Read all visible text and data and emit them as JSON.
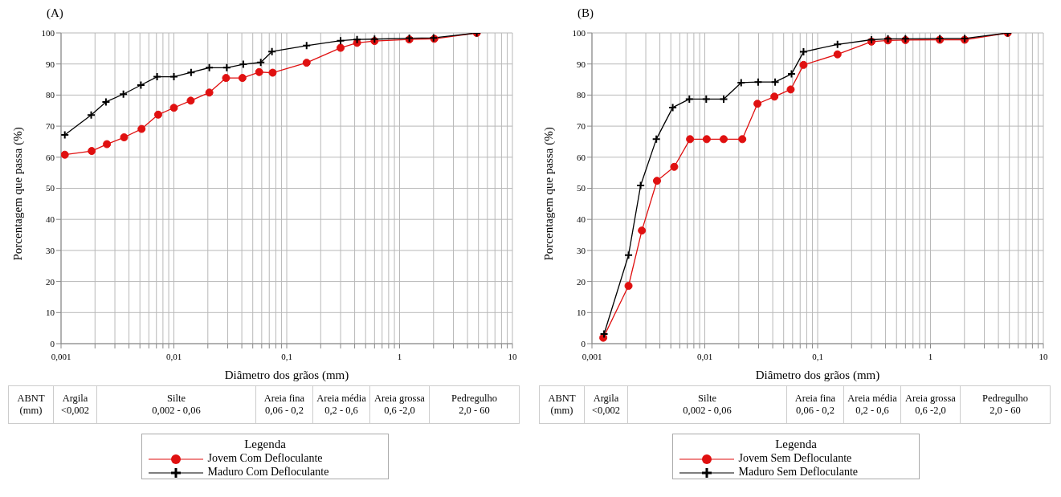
{
  "chart_data": [
    {
      "type": "line",
      "title": "(A)",
      "xlabel": "Diâmetro dos grãos (mm)",
      "ylabel": "Porcentagem que passa (%)",
      "log": "x",
      "grid": true,
      "legend": "bottom",
      "legend_title": "Legenda",
      "line_style": "solid",
      "xlim": [
        0.001,
        10
      ],
      "ylim": [
        0,
        100
      ],
      "xticks": [
        {
          "value": 0.001,
          "label": "0,001"
        },
        {
          "value": 0.002,
          "label": null
        },
        {
          "value": 0.003,
          "label": null
        },
        {
          "value": 0.004,
          "label": null
        },
        {
          "value": 0.005,
          "label": null
        },
        {
          "value": 0.006,
          "label": null
        },
        {
          "value": 0.007,
          "label": null
        },
        {
          "value": 0.008,
          "label": null
        },
        {
          "value": 0.009,
          "label": null
        },
        {
          "value": 0.01,
          "label": "0,01"
        },
        {
          "value": 0.02,
          "label": null
        },
        {
          "value": 0.03,
          "label": null
        },
        {
          "value": 0.04,
          "label": null
        },
        {
          "value": 0.05,
          "label": null
        },
        {
          "value": 0.06,
          "label": null
        },
        {
          "value": 0.07,
          "label": null
        },
        {
          "value": 0.08,
          "label": null
        },
        {
          "value": 0.09,
          "label": null
        },
        {
          "value": 0.1,
          "label": "0,1"
        },
        {
          "value": 0.2,
          "label": null
        },
        {
          "value": 0.3,
          "label": null
        },
        {
          "value": 0.4,
          "label": null
        },
        {
          "value": 0.5,
          "label": null
        },
        {
          "value": 0.6,
          "label": null
        },
        {
          "value": 0.7,
          "label": null
        },
        {
          "value": 0.8,
          "label": null
        },
        {
          "value": 0.9,
          "label": null
        },
        {
          "value": 1,
          "label": "1"
        },
        {
          "value": 2,
          "label": null
        },
        {
          "value": 3,
          "label": null
        },
        {
          "value": 4,
          "label": null
        },
        {
          "value": 5,
          "label": null
        },
        {
          "value": 6,
          "label": null
        },
        {
          "value": 7,
          "label": null
        },
        {
          "value": 8,
          "label": null
        },
        {
          "value": 9,
          "label": null
        },
        {
          "value": 10,
          "label": "10"
        }
      ],
      "yticks": [
        0,
        10,
        20,
        30,
        40,
        50,
        60,
        70,
        80,
        90,
        100
      ],
      "series": [
        {
          "name": "Jovem Com Defloculante",
          "color": "#e01010",
          "marker": "circle",
          "x": [
            0.00108,
            0.00187,
            0.00255,
            0.00362,
            0.00517,
            0.00726,
            0.01,
            0.0141,
            0.0206,
            0.029,
            0.0405,
            0.057,
            0.075,
            0.15,
            0.3,
            0.42,
            0.6,
            1.22,
            2.03,
            4.83
          ],
          "values": [
            60.8,
            62.0,
            64.2,
            66.4,
            69.1,
            73.7,
            75.9,
            78.2,
            80.8,
            85.5,
            85.5,
            87.4,
            87.2,
            90.4,
            95.2,
            96.8,
            97.4,
            97.9,
            98.1,
            100
          ]
        },
        {
          "name": "Maduro Com Defloculante",
          "color": "#000000",
          "marker": "cross",
          "x": [
            0.00108,
            0.00185,
            0.0025,
            0.00357,
            0.0051,
            0.0071,
            0.01,
            0.0142,
            0.0206,
            0.0294,
            0.0412,
            0.0589,
            0.074,
            0.15,
            0.3,
            0.42,
            0.6,
            1.22,
            2.0,
            4.83
          ],
          "values": [
            67.2,
            73.6,
            77.8,
            80.3,
            83.2,
            85.9,
            85.9,
            87.3,
            88.8,
            88.8,
            89.9,
            90.5,
            94.0,
            95.9,
            97.5,
            97.9,
            98.0,
            98.3,
            98.4,
            100
          ]
        }
      ],
      "annotations": [
        "ABNT\n(mm)",
        "Argila\n<0,002",
        "Silte\n0,002 - 0,06",
        "Areia fina\n0,06 - 0,2",
        "Areia média\n0,2 - 0,6",
        "Areia grossa\n0,6 -2,0",
        "Pedregulho\n2,0 - 60"
      ]
    },
    {
      "type": "line",
      "title": "(B)",
      "xlabel": "Diâmetro dos grãos (mm)",
      "ylabel": "Porcentagem que passa (%)",
      "log": "x",
      "grid": true,
      "legend": "bottom",
      "legend_title": "Legenda",
      "line_style": "solid",
      "xlim": [
        0.001,
        10
      ],
      "ylim": [
        0,
        100
      ],
      "xticks": [
        {
          "value": 0.001,
          "label": "0,001"
        },
        {
          "value": 0.002,
          "label": null
        },
        {
          "value": 0.003,
          "label": null
        },
        {
          "value": 0.004,
          "label": null
        },
        {
          "value": 0.005,
          "label": null
        },
        {
          "value": 0.006,
          "label": null
        },
        {
          "value": 0.007,
          "label": null
        },
        {
          "value": 0.008,
          "label": null
        },
        {
          "value": 0.009,
          "label": null
        },
        {
          "value": 0.01,
          "label": "0,01"
        },
        {
          "value": 0.02,
          "label": null
        },
        {
          "value": 0.03,
          "label": null
        },
        {
          "value": 0.04,
          "label": null
        },
        {
          "value": 0.05,
          "label": null
        },
        {
          "value": 0.06,
          "label": null
        },
        {
          "value": 0.07,
          "label": null
        },
        {
          "value": 0.08,
          "label": null
        },
        {
          "value": 0.09,
          "label": null
        },
        {
          "value": 0.1,
          "label": "0,1"
        },
        {
          "value": 0.2,
          "label": null
        },
        {
          "value": 0.3,
          "label": null
        },
        {
          "value": 0.4,
          "label": null
        },
        {
          "value": 0.5,
          "label": null
        },
        {
          "value": 0.6,
          "label": null
        },
        {
          "value": 0.7,
          "label": null
        },
        {
          "value": 0.8,
          "label": null
        },
        {
          "value": 0.9,
          "label": null
        },
        {
          "value": 1,
          "label": "1"
        },
        {
          "value": 2,
          "label": null
        },
        {
          "value": 3,
          "label": null
        },
        {
          "value": 4,
          "label": null
        },
        {
          "value": 5,
          "label": null
        },
        {
          "value": 6,
          "label": null
        },
        {
          "value": 7,
          "label": null
        },
        {
          "value": 8,
          "label": null
        },
        {
          "value": 9,
          "label": null
        },
        {
          "value": 10,
          "label": "10"
        }
      ],
      "yticks": [
        0,
        10,
        20,
        30,
        40,
        50,
        60,
        70,
        80,
        90,
        100
      ],
      "series": [
        {
          "name": "Jovem Sem Defloculante",
          "color": "#e01010",
          "marker": "circle",
          "x": [
            0.00126,
            0.00211,
            0.00277,
            0.00377,
            0.00536,
            0.0074,
            0.0104,
            0.0147,
            0.0215,
            0.0293,
            0.0414,
            0.0577,
            0.075,
            0.15,
            0.3,
            0.42,
            0.6,
            1.21,
            2.01,
            4.83
          ],
          "values": [
            1.9,
            18.6,
            36.4,
            52.4,
            56.9,
            65.8,
            65.8,
            65.8,
            65.8,
            77.2,
            79.5,
            81.8,
            89.7,
            93.1,
            97.2,
            97.6,
            97.7,
            97.8,
            97.8,
            100
          ]
        },
        {
          "name": "Maduro Sem Defloculante",
          "color": "#000000",
          "marker": "cross",
          "x": [
            0.00128,
            0.00211,
            0.0027,
            0.00372,
            0.0052,
            0.0073,
            0.0103,
            0.0147,
            0.021,
            0.0297,
            0.042,
            0.0587,
            0.075,
            0.15,
            0.3,
            0.42,
            0.6,
            1.21,
            2.01,
            4.83
          ],
          "values": [
            3.1,
            28.5,
            50.9,
            65.8,
            76.0,
            78.7,
            78.7,
            78.7,
            84.0,
            84.2,
            84.2,
            86.8,
            93.9,
            96.3,
            97.8,
            98.1,
            98.1,
            98.2,
            98.2,
            100
          ]
        }
      ],
      "annotations": [
        "ABNT\n(mm)",
        "Argila\n<0,002",
        "Silte\n0,002 - 0,06",
        "Areia fina\n0,06 - 0,2",
        "Areia média\n0,2 - 0,6",
        "Areia grossa\n0,6 -2,0",
        "Pedregulho\n2,0 - 60"
      ]
    }
  ]
}
